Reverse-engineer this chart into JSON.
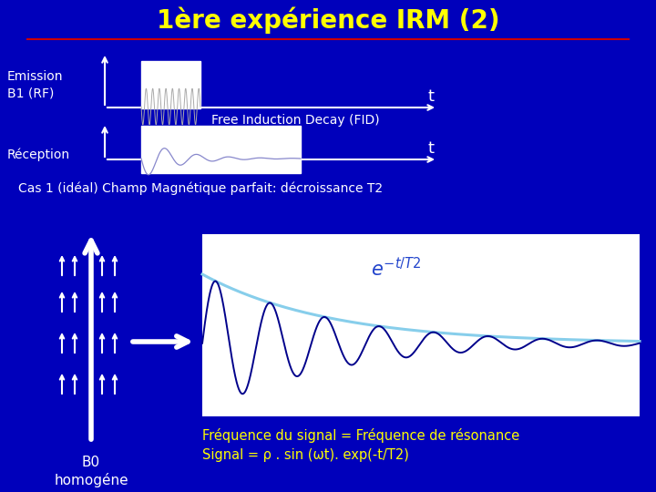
{
  "bg_color": "#0000BB",
  "title": "1ère expérience IRM (2)",
  "title_color": "#FFFF00",
  "title_fontsize": 20,
  "separator_color": "#CC0000",
  "text_color": "#FFFFFF",
  "yellow_text_color": "#FFFF00",
  "emission_label": "Emission\nB1 (RF)",
  "reception_label": "Réception",
  "fid_label": "Free Induction Decay (FID)",
  "t_label": "t",
  "cas_label": "Cas 1 (idéal) Champ Magnétique parfait: décroissance T2",
  "b0_label": "B0\nhomogéne",
  "freq_label": "Fréquence du signal = Fréquence de résonance\nSignal = ρ . sin (ωt). exp(-t/T2)",
  "plot_bg": "#FFFFFF",
  "fid_color": "#00008B",
  "envelope_color": "#87CEEB"
}
